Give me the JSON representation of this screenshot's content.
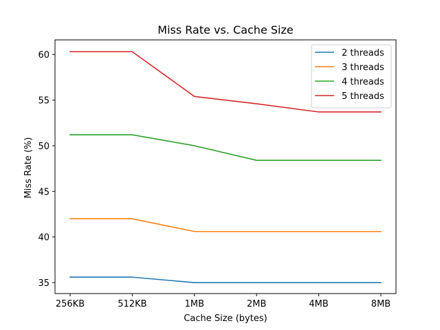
{
  "chart_data": {
    "type": "line",
    "title": "Miss Rate vs. Cache Size",
    "xlabel": "Cache Size (bytes)",
    "ylabel": "Miss Rate (%)",
    "categories": [
      "256KB",
      "512KB",
      "1MB",
      "2MB",
      "4MB",
      "8MB"
    ],
    "ylim": [
      33.8,
      61.6
    ],
    "yticks": [
      35,
      40,
      45,
      50,
      55,
      60
    ],
    "grid": false,
    "legend_position": "top-right",
    "series": [
      {
        "name": "2 threads",
        "color": "#1f77b4",
        "values": [
          35.6,
          35.6,
          35.0,
          35.0,
          35.0,
          35.0
        ]
      },
      {
        "name": "3 threads",
        "color": "#ff7f0e",
        "values": [
          42.0,
          42.0,
          40.6,
          40.6,
          40.6,
          40.6
        ]
      },
      {
        "name": "4 threads",
        "color": "#2ca02c",
        "values": [
          51.2,
          51.2,
          50.0,
          48.4,
          48.4,
          48.4
        ]
      },
      {
        "name": "5 threads",
        "color": "#d62728",
        "values": [
          60.3,
          60.3,
          55.4,
          54.6,
          53.7,
          53.7
        ]
      }
    ]
  }
}
